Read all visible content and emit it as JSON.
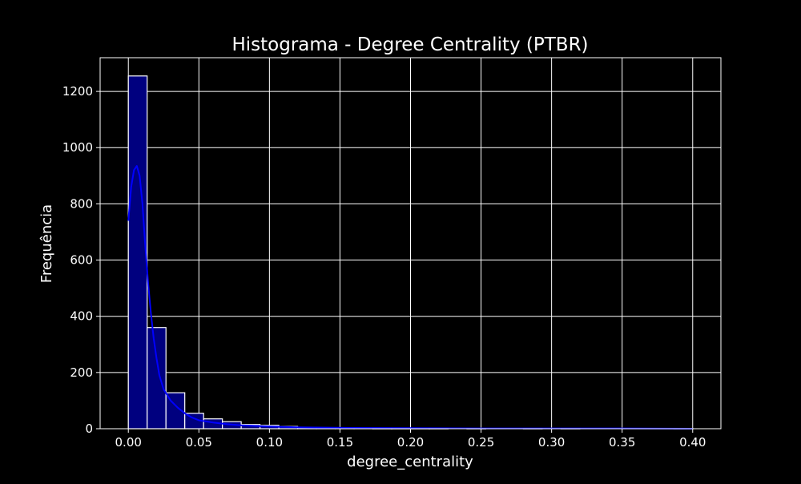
{
  "chart_data": {
    "type": "bar",
    "title": "Histograma - Degree Centrality (PTBR)",
    "xlabel": "degree_centrality",
    "ylabel": "Frequência",
    "xlim": [
      -0.02,
      0.42
    ],
    "ylim": [
      0,
      1320
    ],
    "xticks": [
      0.0,
      0.05,
      0.1,
      0.15,
      0.2,
      0.25,
      0.3,
      0.35,
      0.4
    ],
    "xtick_labels": [
      "0.00",
      "0.05",
      "0.10",
      "0.15",
      "0.20",
      "0.25",
      "0.30",
      "0.35",
      "0.40"
    ],
    "yticks": [
      0,
      200,
      400,
      600,
      800,
      1000,
      1200
    ],
    "ytick_labels": [
      "0",
      "200",
      "400",
      "600",
      "800",
      "1000",
      "1200"
    ],
    "grid": true,
    "colors": {
      "background": "#000000",
      "bar_fill": "#00007f",
      "bar_edge": "#ffffff",
      "kde_line": "#0000ff",
      "grid": "#ffffff",
      "text": "#ffffff"
    },
    "bin_edges": [
      0.0,
      0.013333,
      0.026667,
      0.04,
      0.053333,
      0.066667,
      0.08,
      0.093333,
      0.106667,
      0.12,
      0.133333,
      0.146667,
      0.16,
      0.173333,
      0.186667,
      0.2,
      0.213333,
      0.226667,
      0.24,
      0.253333,
      0.266667,
      0.28,
      0.293333,
      0.306667,
      0.32,
      0.333333,
      0.346667,
      0.36,
      0.373333,
      0.386667,
      0.4
    ],
    "values": [
      1255,
      360,
      128,
      55,
      35,
      25,
      15,
      12,
      8,
      4,
      3,
      3,
      2,
      1,
      1,
      1,
      1,
      0,
      1,
      0,
      0,
      1,
      0,
      1,
      0,
      0,
      0,
      0,
      0,
      1
    ],
    "kde": {
      "x": [
        0.0,
        0.002,
        0.004,
        0.006,
        0.008,
        0.01,
        0.012,
        0.014,
        0.016,
        0.018,
        0.02,
        0.022,
        0.025,
        0.03,
        0.035,
        0.04,
        0.045,
        0.05,
        0.06,
        0.07,
        0.08,
        0.09,
        0.1,
        0.12,
        0.14,
        0.16,
        0.2,
        0.25,
        0.3,
        0.35,
        0.4
      ],
      "y": [
        740,
        860,
        920,
        935,
        900,
        800,
        650,
        520,
        410,
        320,
        250,
        190,
        140,
        100,
        75,
        55,
        40,
        30,
        22,
        16,
        12,
        10,
        8,
        5,
        4,
        3,
        2,
        1,
        1,
        1,
        0
      ]
    }
  }
}
